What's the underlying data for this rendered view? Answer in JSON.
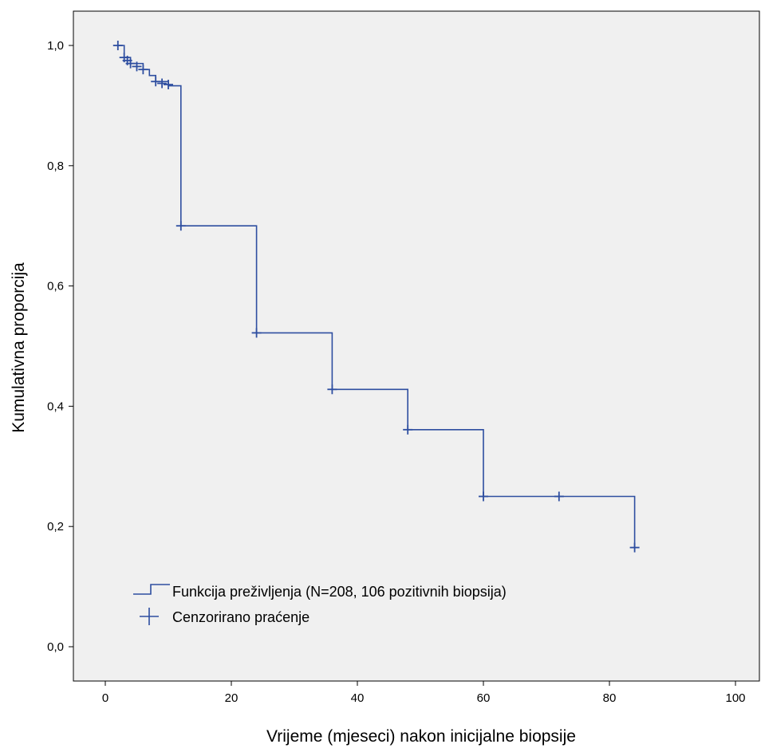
{
  "chart_data": {
    "type": "line",
    "chart_subtype": "kaplan-meier step",
    "xlabel": "Vrijeme (mjeseci) nakon inicijalne biopsije",
    "ylabel": "Kumulativna proporcija",
    "xlim": [
      -5,
      105
    ],
    "ylim": [
      -0.04,
      1.06
    ],
    "x_ticks": [
      0,
      20,
      40,
      60,
      80,
      100
    ],
    "x_tick_labels": [
      "0",
      "20",
      "40",
      "60",
      "80",
      "100"
    ],
    "y_ticks": [
      0.0,
      0.2,
      0.4,
      0.6,
      0.8,
      1.0
    ],
    "y_tick_labels": [
      "0,0",
      "0,2",
      "0,4",
      "0,6",
      "0,8",
      "1,0"
    ],
    "grid": false,
    "plot_background": "#f0f0f0",
    "series_color": "#2e4ea0",
    "legend_position": "bottom-left",
    "series": [
      {
        "name": "Funkcija preživljenja (N=208, 106 pozitivnih biopsija)",
        "kind": "survival-step",
        "x": [
          0,
          3,
          4,
          6,
          7,
          8,
          10,
          12,
          24,
          36,
          48,
          60,
          84
        ],
        "y": [
          1.0,
          0.98,
          0.97,
          0.96,
          0.95,
          0.94,
          0.933,
          0.7,
          0.522,
          0.428,
          0.361,
          0.25,
          0.165
        ],
        "start_x": 2
      },
      {
        "name": "Cenzorirano praćenje",
        "kind": "censor-marks",
        "x": [
          2,
          3,
          3.5,
          4,
          5,
          6,
          8,
          9,
          10,
          12,
          24,
          36,
          48,
          60,
          72,
          84
        ],
        "y": [
          1.0,
          0.98,
          0.975,
          0.97,
          0.965,
          0.96,
          0.94,
          0.937,
          0.935,
          0.7,
          0.522,
          0.428,
          0.361,
          0.25,
          0.25,
          0.165
        ]
      }
    ]
  }
}
